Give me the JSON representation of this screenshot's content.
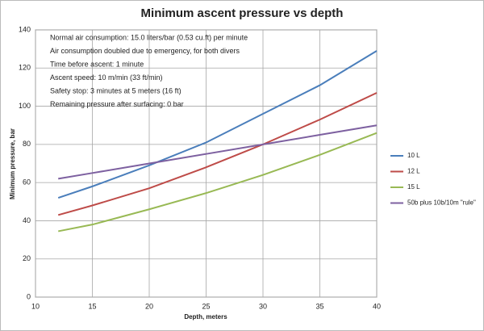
{
  "chart_data": {
    "type": "line",
    "title": "Minimum ascent pressure vs depth",
    "x_label": "Depth, meters",
    "y_label": "Minimum pressure, bar",
    "annotations": [
      "Normal air consumption: 15.0 liters/bar (0.53 cu.ft) per minute",
      "Air consumption doubled due to emergency, for both divers",
      "Time before ascent: 1 minute",
      "Ascent speed: 10 m/min (33 ft/min)",
      "Safety stop: 3 minutes at 5 meters (16 ft)",
      "Remaining pressure after surfacing: 0 bar"
    ],
    "x": [
      12,
      15,
      20,
      25,
      30,
      35,
      40
    ],
    "series": [
      {
        "name": "10 L",
        "color": "#4a7ebb",
        "values": [
          52,
          58,
          69,
          81,
          96,
          111,
          129
        ]
      },
      {
        "name": "12 L",
        "color": "#be4b48",
        "values": [
          43,
          48,
          57,
          68,
          80,
          93,
          107
        ]
      },
      {
        "name": "15 L",
        "color": "#98b954",
        "values": [
          34.5,
          38,
          46,
          54.5,
          64,
          74.5,
          86
        ]
      },
      {
        "name": "50b plus 10b/10m \"rule\"",
        "color": "#7d60a0",
        "values": [
          62,
          65,
          70,
          75,
          80,
          85,
          90
        ]
      }
    ],
    "xlim": [
      10,
      40
    ],
    "xticks": [
      10,
      15,
      20,
      25,
      30,
      35,
      40
    ],
    "ylim": [
      0,
      140
    ],
    "yticks": [
      0,
      20,
      40,
      60,
      80,
      100,
      120,
      140
    ],
    "grid": true,
    "legend": "right"
  }
}
